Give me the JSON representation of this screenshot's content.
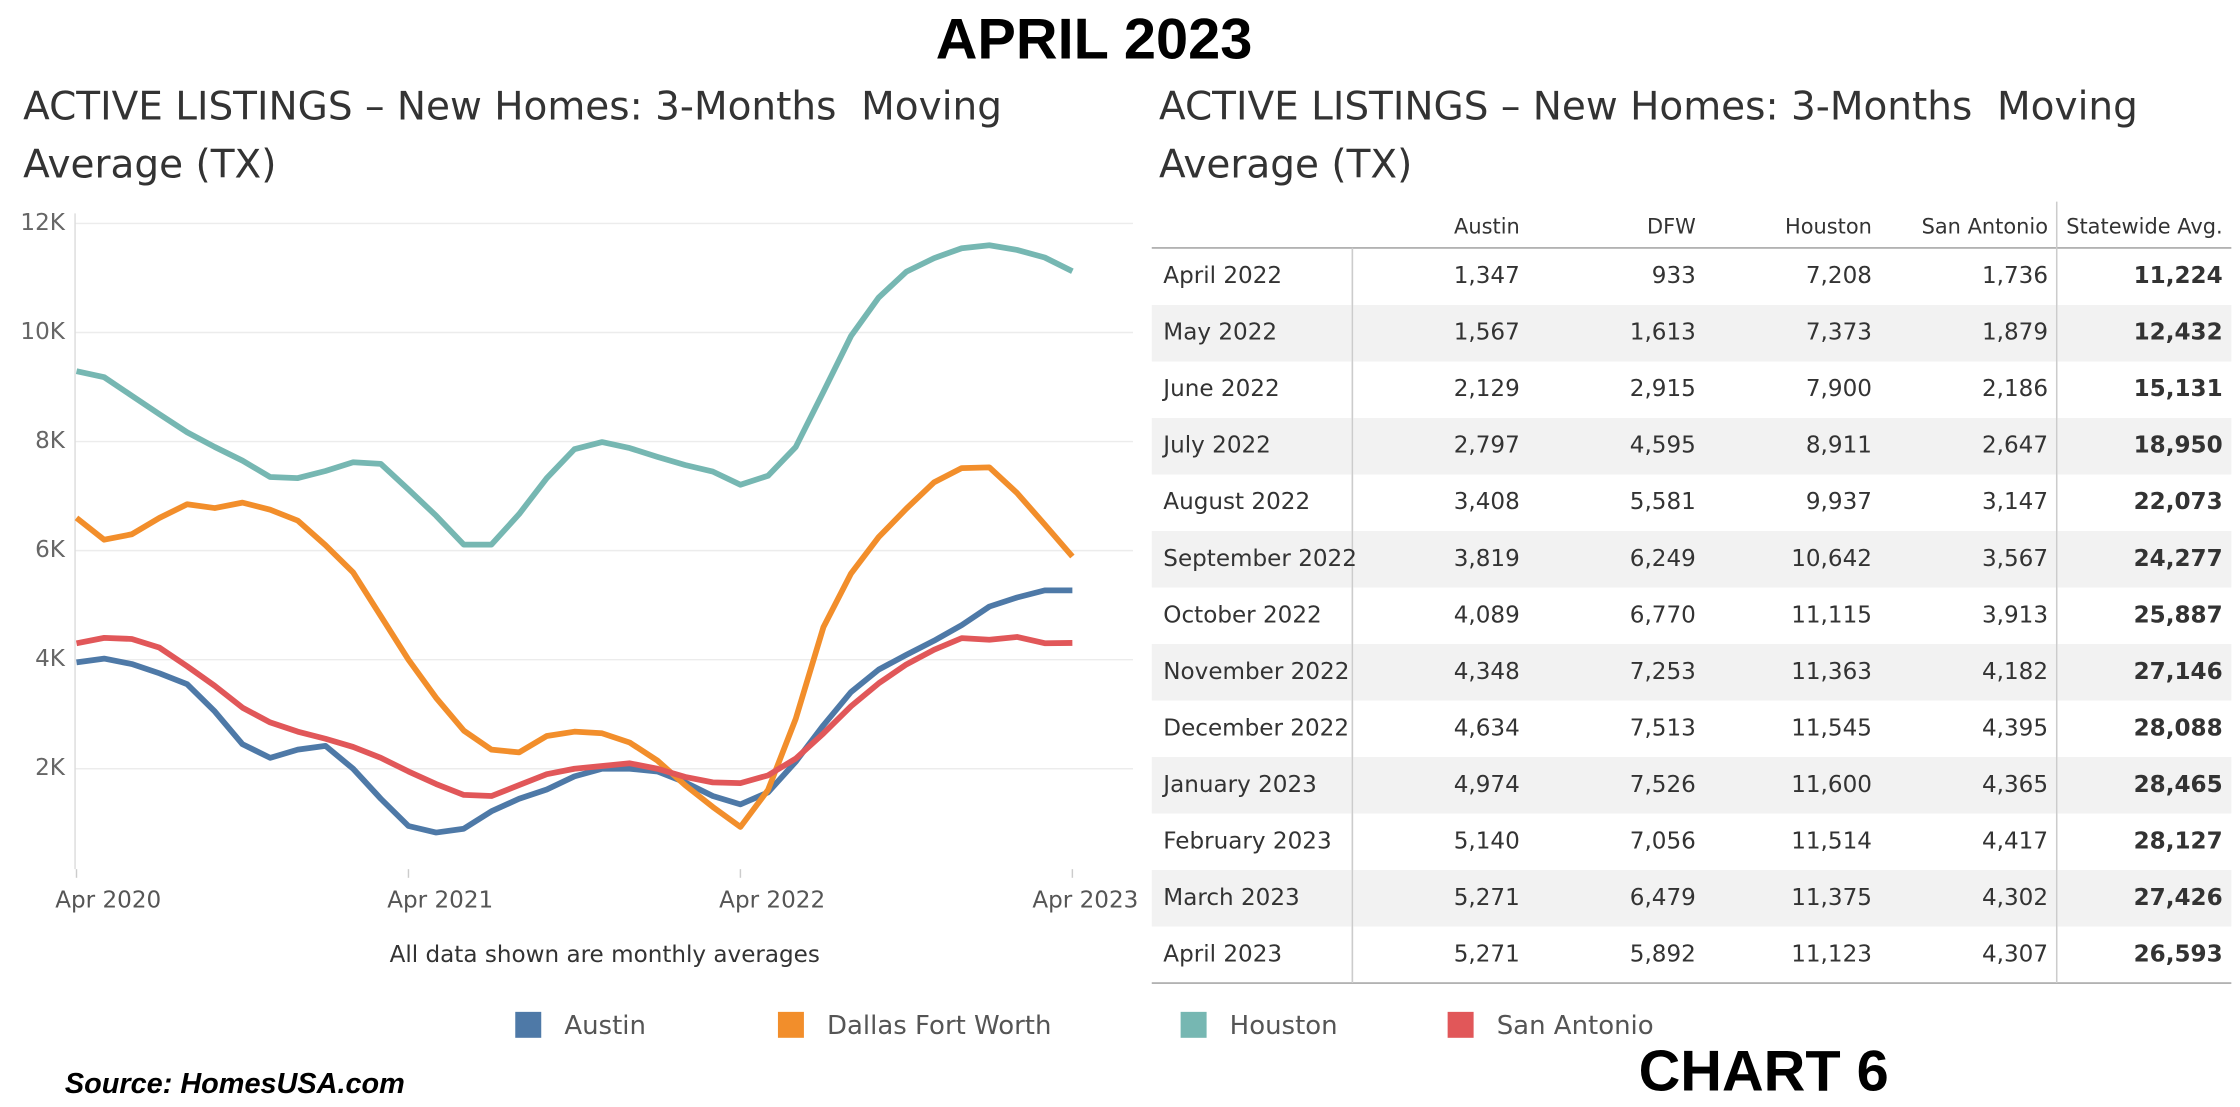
{
  "page_title": "APRIL 2023",
  "chart_label": "CHART 6",
  "source": "Source: HomesUSA.com",
  "chart_data": {
    "type": "line",
    "title": "ACTIVE LISTINGS – New Homes: 3-Months  Moving Average (TX)",
    "note": "All data shown are monthly averages",
    "x": [
      "2020-04",
      "2020-05",
      "2020-06",
      "2020-07",
      "2020-08",
      "2020-09",
      "2020-10",
      "2020-11",
      "2020-12",
      "2021-01",
      "2021-02",
      "2021-03",
      "2021-04",
      "2021-05",
      "2021-06",
      "2021-07",
      "2021-08",
      "2021-09",
      "2021-10",
      "2021-11",
      "2021-12",
      "2022-01",
      "2022-02",
      "2022-03",
      "2022-04",
      "2022-05",
      "2022-06",
      "2022-07",
      "2022-08",
      "2022-09",
      "2022-10",
      "2022-11",
      "2022-12",
      "2023-01",
      "2023-02",
      "2023-03",
      "2023-04"
    ],
    "xticks": [
      {
        "value": "2020-04",
        "label": "Apr 2020"
      },
      {
        "value": "2021-04",
        "label": "Apr 2021"
      },
      {
        "value": "2022-04",
        "label": "Apr 2022"
      },
      {
        "value": "2023-04",
        "label": "Apr 2023"
      }
    ],
    "ylim": [
      0,
      12000
    ],
    "yticks": [
      {
        "value": 2000,
        "label": "2K"
      },
      {
        "value": 4000,
        "label": "4K"
      },
      {
        "value": 6000,
        "label": "6K"
      },
      {
        "value": 8000,
        "label": "8K"
      },
      {
        "value": 10000,
        "label": "10K"
      },
      {
        "value": 12000,
        "label": "12K"
      }
    ],
    "grid": true,
    "series": [
      {
        "name": "Austin",
        "color": "#4e79a7",
        "values": [
          3950,
          4020,
          3920,
          3750,
          3550,
          3050,
          2450,
          2200,
          2350,
          2420,
          2000,
          1450,
          950,
          830,
          900,
          1220,
          1450,
          1620,
          1860,
          2000,
          2000,
          1950,
          1750,
          1500,
          1347,
          1567,
          2129,
          2797,
          3408,
          3819,
          4089,
          4348,
          4634,
          4974,
          5140,
          5271,
          5271
        ]
      },
      {
        "name": "Dallas Fort Worth",
        "color": "#f28e2b",
        "values": [
          6600,
          6200,
          6300,
          6600,
          6850,
          6780,
          6880,
          6750,
          6550,
          6100,
          5600,
          4800,
          4000,
          3300,
          2700,
          2350,
          2300,
          2600,
          2680,
          2650,
          2480,
          2150,
          1700,
          1300,
          933,
          1613,
          2915,
          4595,
          5581,
          6249,
          6770,
          7253,
          7513,
          7526,
          7056,
          6479,
          5892
        ]
      },
      {
        "name": "Houston",
        "color": "#76b7b2",
        "values": [
          9290,
          9180,
          8840,
          8500,
          8170,
          7900,
          7650,
          7350,
          7330,
          7460,
          7620,
          7590,
          7120,
          6640,
          6110,
          6110,
          6670,
          7330,
          7860,
          7990,
          7880,
          7720,
          7570,
          7450,
          7208,
          7373,
          7900,
          8911,
          9937,
          10642,
          11115,
          11363,
          11545,
          11600,
          11514,
          11375,
          11123
        ]
      },
      {
        "name": "San Antonio",
        "color": "#e15759",
        "values": [
          4300,
          4400,
          4380,
          4220,
          3880,
          3520,
          3120,
          2850,
          2680,
          2550,
          2400,
          2200,
          1950,
          1720,
          1520,
          1500,
          1700,
          1900,
          2000,
          2050,
          2100,
          2000,
          1850,
          1750,
          1736,
          1879,
          2186,
          2647,
          3147,
          3567,
          3913,
          4182,
          4395,
          4365,
          4417,
          4302,
          4307
        ]
      }
    ]
  },
  "table": {
    "title": "ACTIVE LISTINGS – New Homes: 3-Months  Moving Average (TX)",
    "columns": [
      "Austin",
      "DFW",
      "Houston",
      "San Antonio",
      "Statewide Avg."
    ],
    "rows": [
      [
        "April 2022",
        "1,347",
        "933",
        "7,208",
        "1,736",
        "11,224"
      ],
      [
        "May 2022",
        "1,567",
        "1,613",
        "7,373",
        "1,879",
        "12,432"
      ],
      [
        "June 2022",
        "2,129",
        "2,915",
        "7,900",
        "2,186",
        "15,131"
      ],
      [
        "July 2022",
        "2,797",
        "4,595",
        "8,911",
        "2,647",
        "18,950"
      ],
      [
        "August 2022",
        "3,408",
        "5,581",
        "9,937",
        "3,147",
        "22,073"
      ],
      [
        "September 2022",
        "3,819",
        "6,249",
        "10,642",
        "3,567",
        "24,277"
      ],
      [
        "October 2022",
        "4,089",
        "6,770",
        "11,115",
        "3,913",
        "25,887"
      ],
      [
        "November 2022",
        "4,348",
        "7,253",
        "11,363",
        "4,182",
        "27,146"
      ],
      [
        "December 2022",
        "4,634",
        "7,513",
        "11,545",
        "4,395",
        "28,088"
      ],
      [
        "January 2023",
        "4,974",
        "7,526",
        "11,600",
        "4,365",
        "28,465"
      ],
      [
        "February 2023",
        "5,140",
        "7,056",
        "11,514",
        "4,417",
        "28,127"
      ],
      [
        "March 2023",
        "5,271",
        "6,479",
        "11,375",
        "4,302",
        "27,426"
      ],
      [
        "April 2023",
        "5,271",
        "5,892",
        "11,123",
        "4,307",
        "26,593"
      ]
    ]
  }
}
